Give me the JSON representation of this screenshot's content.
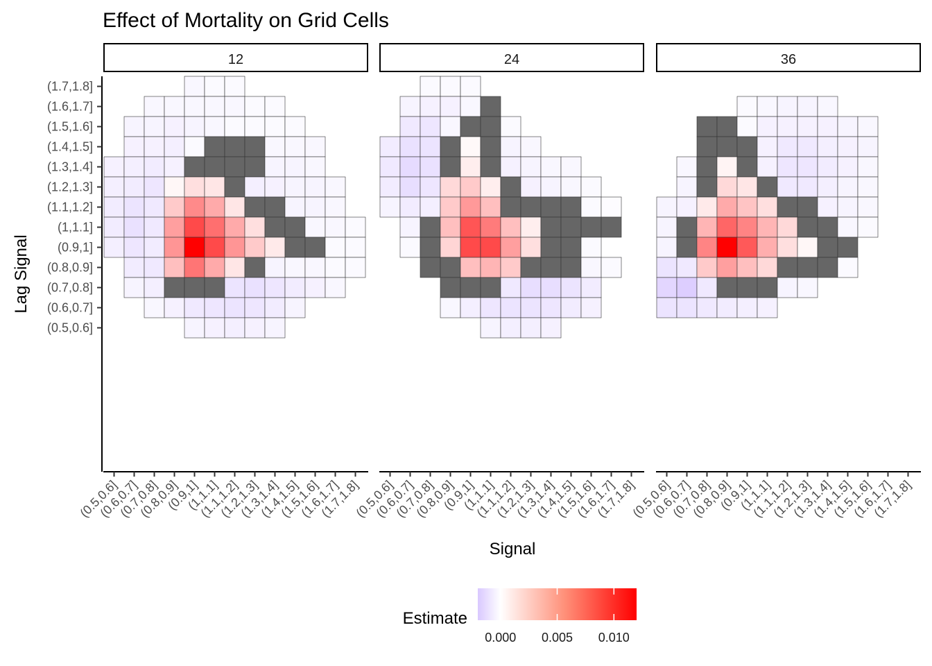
{
  "chart_data": {
    "type": "heatmap",
    "title": "Effect of Mortality on Grid Cells",
    "xlabel": "Signal",
    "ylabel": "Lag Signal",
    "x_categories": [
      "(0.5,0.6]",
      "(0.6,0.7]",
      "(0.7,0.8]",
      "(0.8,0.9]",
      "(0.9,1]",
      "(1,1.1]",
      "(1.1,1.2]",
      "(1.2,1.3]",
      "(1.3,1.4]",
      "(1.4,1.5]",
      "(1.5,1.6]",
      "(1.6,1.7]",
      "(1.7,1.8]"
    ],
    "y_categories": [
      "(0.5,0.6]",
      "(0.6,0.7]",
      "(0.7,0.8]",
      "(0.8,0.9]",
      "(0.9,1]",
      "(1,1.1]",
      "(1.1,1.2]",
      "(1.2,1.3]",
      "(1.3,1.4]",
      "(1.4,1.5]",
      "(1.5,1.6]",
      "(1.6,1.7]",
      "(1.7,1.8]"
    ],
    "missing_color": "#666666",
    "legend": {
      "title": "Estimate",
      "position": "bottom",
      "ticks": [
        "0.000",
        "0.005",
        "0.010"
      ],
      "tick_values": [
        0.0,
        0.005,
        0.01
      ],
      "limits": [
        -0.002,
        0.012
      ],
      "colors": {
        "low": "#d9c8ff",
        "mid": "#ffffff",
        "high": "#ff0000"
      }
    },
    "panels": [
      {
        "label": "12",
        "rows": [
          [
            "",
            "",
            "",
            "",
            "-0.0003",
            "-0.0002",
            "-0.0002",
            "",
            "",
            "",
            "",
            "",
            ""
          ],
          [
            "",
            "",
            "-0.0003",
            "-0.0003",
            "-0.0003",
            "-0.0003",
            "-0.0003",
            "-0.0002",
            "-0.0002",
            "",
            "",
            "",
            ""
          ],
          [
            "",
            "-0.0004",
            "-0.0004",
            "-0.0005",
            "-0.0004",
            "-0.0003",
            "-0.0002",
            "-0.0002",
            "-0.0002",
            "-0.0002",
            "",
            "",
            ""
          ],
          [
            "",
            "-0.0005",
            "-0.0005",
            "-0.0006",
            "-0.0002",
            "NA",
            "NA",
            "NA",
            "-0.0003",
            "-0.0003",
            "-0.0003",
            "",
            ""
          ],
          [
            "-0.0005",
            "-0.0006",
            "-0.0007",
            "-0.0005",
            "NA",
            "NA",
            "NA",
            "NA",
            "-0.0004",
            "-0.0004",
            "-0.0003",
            "",
            ""
          ],
          [
            "-0.0006",
            "-0.0007",
            "-0.0009",
            "0.0004",
            "0.0015",
            "0.0012",
            "NA",
            "-0.0006",
            "-0.0005",
            "-0.0004",
            "-0.0004",
            "-0.0003",
            ""
          ],
          [
            "-0.0007",
            "-0.0010",
            "-0.0008",
            "0.0025",
            "0.0055",
            "0.0040",
            "0.0012",
            "NA",
            "NA",
            "-0.0004",
            "-0.0004",
            "-0.0003",
            ""
          ],
          [
            "-0.0007",
            "-0.0011",
            "-0.0008",
            "0.0045",
            "0.0085",
            "0.0068",
            "0.0040",
            "0.0015",
            "NA",
            "NA",
            "-0.0003",
            "-0.0003",
            "-0.0002"
          ],
          [
            "-0.0006",
            "-0.0009",
            "-0.0007",
            "0.0050",
            "0.0120",
            "0.0085",
            "0.0050",
            "0.0025",
            "0.0010",
            "NA",
            "NA",
            "-0.0002",
            "-0.0002"
          ],
          [
            "",
            "-0.0007",
            "-0.0008",
            "0.0030",
            "0.0065",
            "0.0040",
            "0.0012",
            "NA",
            "-0.0004",
            "-0.0003",
            "-0.0003",
            "-0.0002",
            "-0.0002"
          ],
          [
            "",
            "-0.0004",
            "-0.0006",
            "NA",
            "NA",
            "NA",
            "-0.0010",
            "-0.0011",
            "-0.0009",
            "-0.0007",
            "-0.0005",
            "-0.0003",
            ""
          ],
          [
            "",
            "",
            "-0.0003",
            "-0.0005",
            "-0.0008",
            "-0.0009",
            "-0.0010",
            "-0.0009",
            "-0.0007",
            "-0.0004",
            "",
            "",
            ""
          ],
          [
            "",
            "",
            "",
            "",
            "-0.0004",
            "-0.0005",
            "-0.0006",
            "-0.0005",
            "-0.0004",
            "",
            "",
            "",
            ""
          ]
        ]
      },
      {
        "label": "24",
        "rows": [
          [
            "",
            "",
            "-0.0002",
            "-0.0002",
            "-0.0002",
            "",
            "",
            "",
            "",
            "",
            "",
            "",
            ""
          ],
          [
            "",
            "-0.0004",
            "-0.0005",
            "-0.0005",
            "-0.0003",
            "NA",
            "",
            "",
            "",
            "",
            "",
            "",
            ""
          ],
          [
            "",
            "-0.0008",
            "-0.0009",
            "-0.0003",
            "NA",
            "NA",
            "-0.0002",
            "",
            "",
            "",
            "",
            "",
            ""
          ],
          [
            "-0.0007",
            "-0.0011",
            "-0.0010",
            "NA",
            "0.0003",
            "NA",
            "-0.0004",
            "-0.0003",
            "",
            "",
            "",
            "",
            ""
          ],
          [
            "-0.0008",
            "-0.0013",
            "-0.0011",
            "NA",
            "0.0008",
            "NA",
            "-0.0005",
            "-0.0004",
            "-0.0003",
            "-0.0003",
            "",
            "",
            ""
          ],
          [
            "-0.0007",
            "-0.0012",
            "-0.0009",
            "0.0018",
            "0.0025",
            "0.0008",
            "NA",
            "-0.0005",
            "-0.0004",
            "-0.0003",
            "-0.0002",
            "",
            ""
          ],
          [
            "-0.0004",
            "-0.0007",
            "-0.0006",
            "0.0025",
            "0.0048",
            "0.0030",
            "NA",
            "NA",
            "NA",
            "NA",
            "-0.0002",
            "-0.0001",
            ""
          ],
          [
            "",
            "-0.0004",
            "NA",
            "0.0030",
            "0.0080",
            "0.0062",
            "0.0030",
            "0.0008",
            "NA",
            "NA",
            "NA",
            "NA",
            ""
          ],
          [
            "",
            "-0.0002",
            "NA",
            "0.0020",
            "0.0085",
            "0.0085",
            "0.0045",
            "0.0015",
            "NA",
            "NA",
            "-0.0002",
            "",
            ""
          ],
          [
            "",
            "",
            "NA",
            "NA",
            "0.0030",
            "0.0035",
            "0.0025",
            "NA",
            "NA",
            "NA",
            "-0.0003",
            "-0.0002",
            ""
          ],
          [
            "",
            "",
            "",
            "NA",
            "NA",
            "NA",
            "-0.0008",
            "-0.0012",
            "-0.0012",
            "-0.0010",
            "-0.0007",
            "",
            ""
          ],
          [
            "",
            "",
            "",
            "-0.0003",
            "-0.0006",
            "-0.0009",
            "-0.0010",
            "-0.0010",
            "-0.0009",
            "-0.0007",
            "-0.0005",
            "",
            ""
          ],
          [
            "",
            "",
            "",
            "",
            "",
            "-0.0004",
            "-0.0006",
            "-0.0006",
            "-0.0005",
            "",
            "",
            "",
            ""
          ]
        ]
      },
      {
        "label": "36",
        "rows": [
          [
            "",
            "",
            "",
            "",
            "",
            "",
            "",
            "",
            "",
            "",
            "",
            "",
            ""
          ],
          [
            "",
            "",
            "",
            "",
            "-0.0002",
            "-0.0003",
            "-0.0004",
            "-0.0004",
            "-0.0003",
            "",
            "",
            "",
            ""
          ],
          [
            "",
            "",
            "NA",
            "NA",
            "-0.0002",
            "-0.0005",
            "-0.0005",
            "-0.0005",
            "-0.0005",
            "-0.0004",
            "-0.0003",
            "",
            ""
          ],
          [
            "",
            "",
            "NA",
            "NA",
            "NA",
            "-0.0005",
            "-0.0008",
            "-0.0008",
            "-0.0006",
            "-0.0005",
            "-0.0004",
            "",
            ""
          ],
          [
            "",
            "-0.0003",
            "NA",
            "0.0005",
            "NA",
            "-0.0005",
            "-0.0009",
            "-0.0009",
            "-0.0007",
            "-0.0005",
            "-0.0003",
            "",
            ""
          ],
          [
            "",
            "-0.0004",
            "NA",
            "0.0018",
            "0.0012",
            "NA",
            "-0.0008",
            "-0.0008",
            "-0.0006",
            "-0.0004",
            "-0.0003",
            "",
            ""
          ],
          [
            "-0.0004",
            "-0.0005",
            "0.0010",
            "0.0040",
            "0.0028",
            "0.0015",
            "NA",
            "NA",
            "-0.0005",
            "-0.0004",
            "-0.0003",
            "",
            ""
          ],
          [
            "-0.0004",
            "NA",
            "0.0035",
            "0.0072",
            "0.0058",
            "0.0035",
            "0.0018",
            "NA",
            "NA",
            "-0.0003",
            "-0.0002",
            "",
            ""
          ],
          [
            "-0.0004",
            "NA",
            "0.0058",
            "0.0120",
            "0.0078",
            "0.0038",
            "0.0015",
            "0.0004",
            "NA",
            "NA",
            "",
            "",
            ""
          ],
          [
            "-0.0010",
            "-0.0008",
            "0.0025",
            "0.0045",
            "0.0030",
            "0.0018",
            "NA",
            "NA",
            "NA",
            "-0.0002",
            "",
            "",
            ""
          ],
          [
            "-0.0015",
            "-0.0018",
            "-0.0008",
            "NA",
            "NA",
            "NA",
            "-0.0004",
            "-0.0003",
            "",
            "",
            "",
            "",
            ""
          ],
          [
            "-0.0010",
            "-0.0010",
            "-0.0008",
            "-0.0007",
            "-0.0006",
            "-0.0005",
            "",
            "",
            "",
            "",
            "",
            "",
            ""
          ],
          [
            "",
            "",
            "",
            "",
            "",
            "",
            "",
            "",
            "",
            "",
            "",
            "",
            ""
          ]
        ]
      }
    ]
  }
}
